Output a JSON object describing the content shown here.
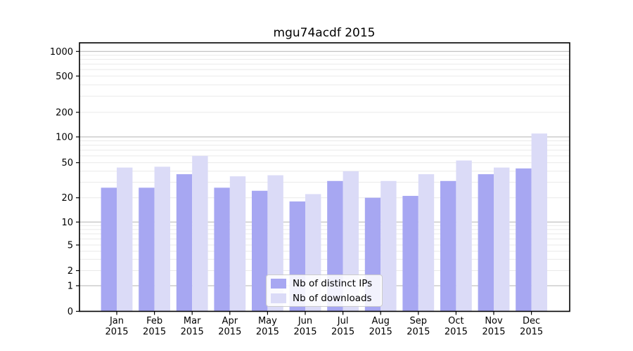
{
  "title": "mgu74acdf 2015",
  "colors": {
    "ips": "#a7a7f2",
    "downloads": "#dbdbf7",
    "grid_major": "#b3b3b3",
    "grid_minor": "#e9e9e9",
    "axis": "#000000",
    "text": "#000000",
    "legend_border": "#cccccc"
  },
  "legend": {
    "items": [
      {
        "label": "Nb of distinct IPs",
        "color_key": "ips"
      },
      {
        "label": "Nb of downloads",
        "color_key": "downloads"
      }
    ]
  },
  "chart_data": {
    "type": "bar",
    "title": "mgu74acdf 2015",
    "xlabel": "",
    "ylabel": "",
    "year_label": "2015",
    "categories": [
      "Jan",
      "Feb",
      "Mar",
      "Apr",
      "May",
      "Jun",
      "Jul",
      "Aug",
      "Sep",
      "Oct",
      "Nov",
      "Dec"
    ],
    "series": [
      {
        "name": "Nb of distinct IPs",
        "values": [
          26,
          26,
          37,
          26,
          24,
          18,
          31,
          20,
          21,
          31,
          37,
          43
        ]
      },
      {
        "name": "Nb of downloads",
        "values": [
          44,
          45,
          60,
          35,
          36,
          22,
          40,
          31,
          37,
          53,
          44,
          110
        ]
      }
    ],
    "yscale": "symlog",
    "yticks": [
      0,
      1,
      2,
      5,
      10,
      20,
      50,
      100,
      200,
      500,
      1000
    ],
    "ytick_major": [
      1,
      10,
      100,
      1000
    ],
    "ytick_minor": [
      2,
      3,
      4,
      5,
      6,
      7,
      8,
      9,
      20,
      30,
      40,
      50,
      60,
      70,
      80,
      90,
      200,
      300,
      400,
      500,
      600,
      700,
      800,
      900
    ],
    "ylim": [
      0,
      1260
    ],
    "grid": true,
    "legend_position": "lower-center"
  }
}
